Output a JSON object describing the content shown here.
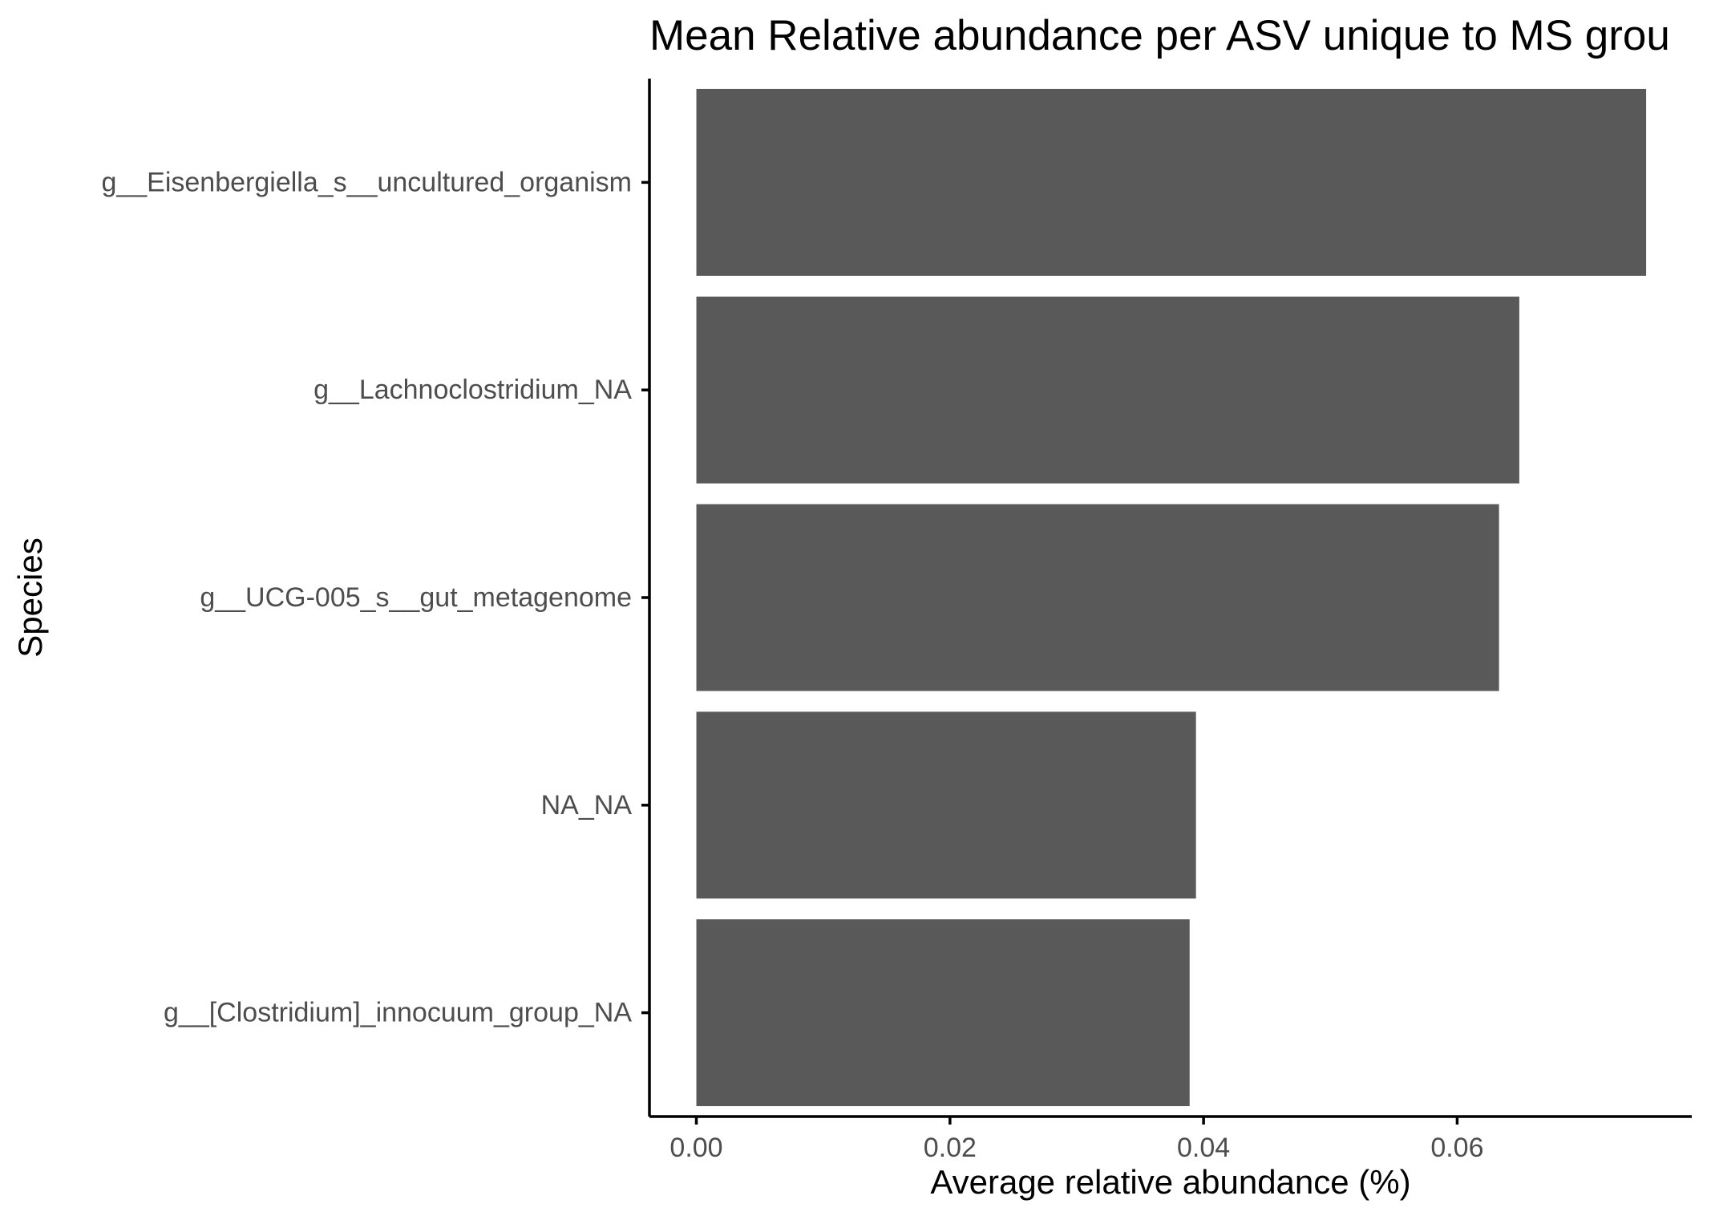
{
  "chart_data": {
    "type": "bar",
    "orientation": "horizontal",
    "title": "Mean Relative abundance per ASV unique to MS grou",
    "xlabel": "Average relative abundance (%)",
    "ylabel": "Species",
    "categories": [
      "g__Eisenbergiella_s__uncultured_organism",
      "g__Lachnoclostridium_NA",
      "g__UCG-005_s__gut_metagenome",
      "NA_NA",
      "g__[Clostridium]_innocuum_group_NA"
    ],
    "values": [
      0.0749,
      0.0649,
      0.0633,
      0.0394,
      0.0389
    ],
    "xlim": [
      -0.0037,
      0.0785
    ],
    "x_ticks": [
      0.0,
      0.02,
      0.04,
      0.06
    ],
    "x_tick_labels": [
      "0.00",
      "0.02",
      "0.04",
      "0.06"
    ],
    "grid": false,
    "legend": "none",
    "colors": {
      "bar": "#595959",
      "axis": "#000000",
      "tick_label": "#4d4d4d",
      "background": "#ffffff"
    }
  }
}
